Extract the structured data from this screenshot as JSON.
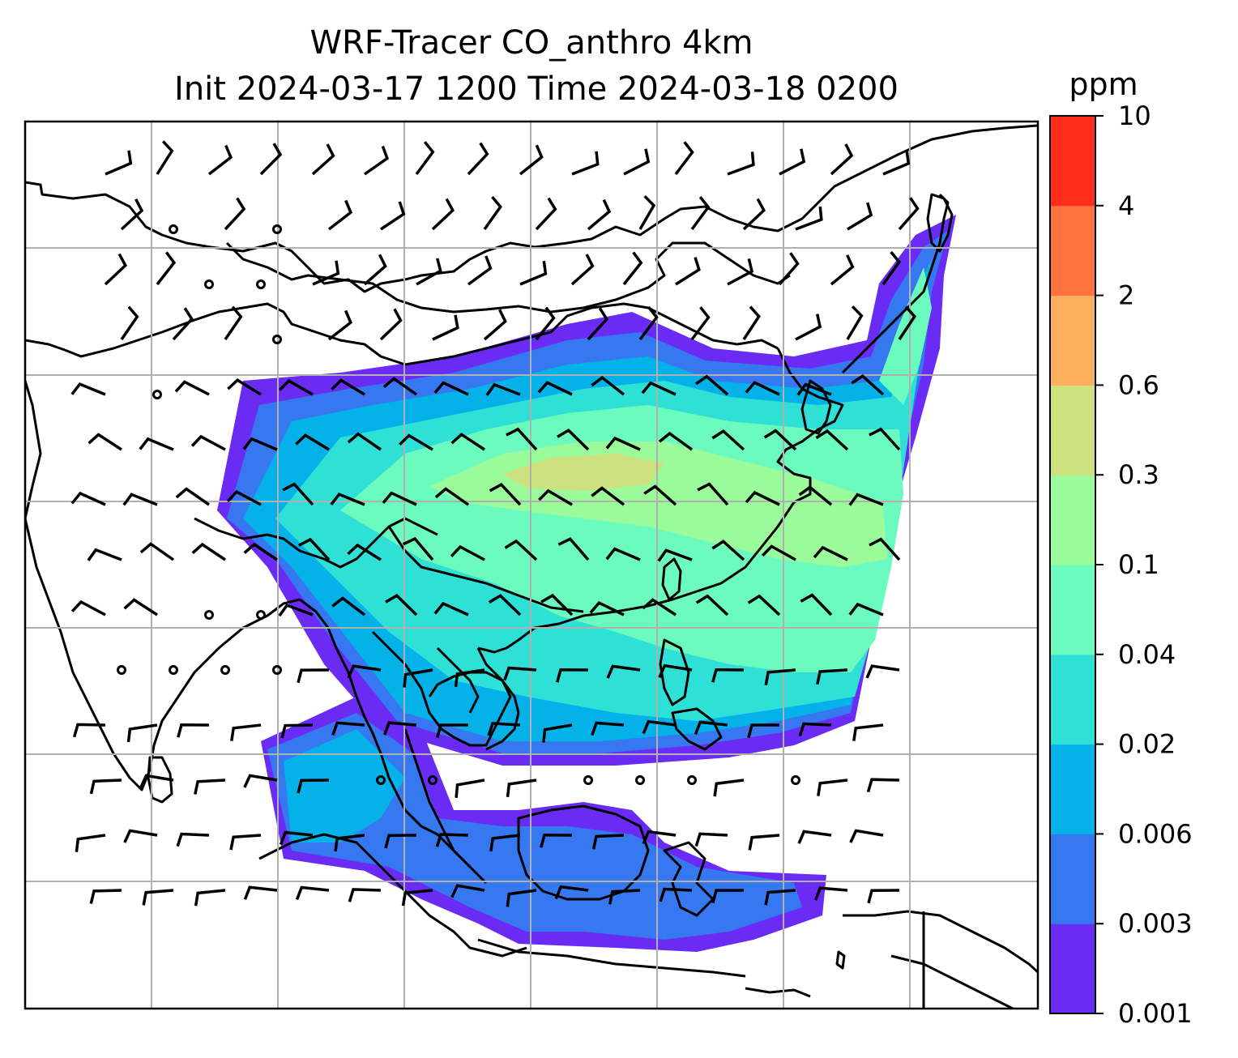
{
  "title": {
    "line1": "WRF-Tracer CO_anthro 4km",
    "line2": "Init 2024-03-17 1200 Time 2024-03-18 0200"
  },
  "colorbar": {
    "units": "ppm",
    "levels": [
      "0.001",
      "0.003",
      "0.006",
      "0.02",
      "0.04",
      "0.1",
      "0.3",
      "0.6",
      "2",
      "4",
      "10"
    ],
    "colors": [
      "#6a2cf5",
      "#3678f0",
      "#04b2e9",
      "#2ee0d6",
      "#6bfbbe",
      "#9bfa9a",
      "#cfe07f",
      "#feaf5e",
      "#ff733c",
      "#ff2d19"
    ]
  },
  "map": {
    "gridline_color": "#b0b0b0",
    "coastline_color": "#000000",
    "wind_barb_color": "#000000",
    "calm_marker": "circle"
  }
}
